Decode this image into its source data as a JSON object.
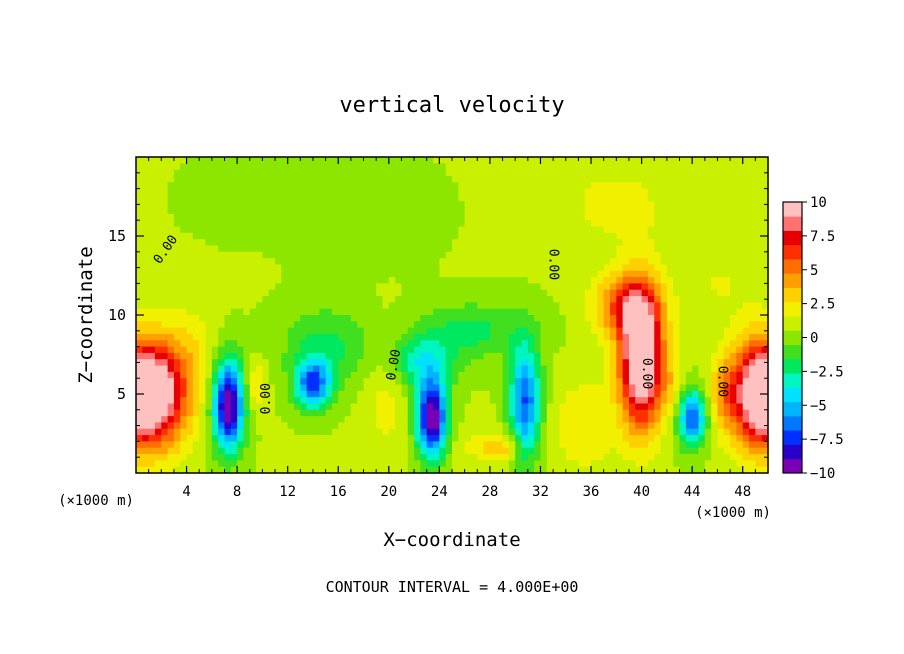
{
  "chart_data": {
    "type": "heatmap",
    "title": "vertical velocity",
    "xlabel": "X−coordinate",
    "ylabel": "Z−coordinate",
    "x_unit_left": "(×1000 m)",
    "x_unit_right": "(×1000 m)",
    "footer": "CONTOUR INTERVAL = 4.000E+00",
    "xlim": [
      0,
      50
    ],
    "ylim": [
      0,
      20
    ],
    "xticks": [
      4,
      8,
      12,
      16,
      20,
      24,
      28,
      32,
      36,
      40,
      44,
      48
    ],
    "xtick_labels": [
      "4",
      "8",
      "12",
      "16",
      "20",
      "24",
      "28",
      "32",
      "36",
      "40",
      "44",
      "48"
    ],
    "yticks": [
      5,
      10,
      15
    ],
    "ytick_labels": [
      "5",
      "10",
      "15"
    ],
    "colorbar": {
      "min": -10,
      "max": 10,
      "ticks": [
        10,
        7.5,
        5,
        2.5,
        0,
        -2.5,
        -5,
        -7.5,
        -10
      ],
      "tick_labels": [
        "10",
        "7.5",
        "5",
        "2.5",
        "0",
        "−2.5",
        "−5",
        "−7.5",
        "−10"
      ],
      "colors": [
        "#7a00b4",
        "#2a00c8",
        "#0030ff",
        "#0078ff",
        "#00b4ff",
        "#00e0ff",
        "#00f5c0",
        "#00e860",
        "#40e020",
        "#8ce600",
        "#c8f000",
        "#f0f000",
        "#ffd000",
        "#ffa000",
        "#ff6e00",
        "#ff3000",
        "#e80000",
        "#ff7070",
        "#ffc0c0"
      ]
    },
    "contour_labels": [
      {
        "text": "0.00",
        "x": 2.6,
        "z": 14.0,
        "angle": -55
      },
      {
        "text": "0.00",
        "x": 32.7,
        "z": 13.2,
        "angle": 90
      },
      {
        "text": "0.00",
        "x": 20.7,
        "z": 6.8,
        "angle": -80
      },
      {
        "text": "0.00",
        "x": 10.6,
        "z": 4.7,
        "angle": -90
      },
      {
        "text": "0.00",
        "x": 40.1,
        "z": 6.3,
        "angle": 90
      },
      {
        "text": "0.00",
        "x": 46.1,
        "z": 5.8,
        "angle": 90
      }
    ],
    "features": [
      {
        "x": 0.8,
        "z": 5.0,
        "sx": 3.0,
        "sz": 3.3,
        "a": 13
      },
      {
        "x": 49.8,
        "z": 5.0,
        "sx": 2.6,
        "sz": 3.3,
        "a": 13
      },
      {
        "x": 40.0,
        "z": 7.2,
        "sx": 1.7,
        "sz": 4.2,
        "a": 12
      },
      {
        "x": 38.6,
        "z": 10.6,
        "sx": 2.4,
        "sz": 2.0,
        "a": 5
      },
      {
        "x": 7.3,
        "z": 4.3,
        "sx": 1.2,
        "sz": 2.8,
        "a": -11
      },
      {
        "x": 23.4,
        "z": 3.5,
        "sx": 1.2,
        "sz": 2.5,
        "a": -11
      },
      {
        "x": 14.0,
        "z": 5.6,
        "sx": 1.4,
        "sz": 1.5,
        "a": -7.5
      },
      {
        "x": 30.8,
        "z": 4.5,
        "sx": 1.2,
        "sz": 3.5,
        "a": -7.5
      },
      {
        "x": 44.0,
        "z": 3.5,
        "sx": 1.1,
        "sz": 1.8,
        "a": -7.5
      },
      {
        "x": 22.5,
        "z": 7.0,
        "sx": 2.6,
        "sz": 1.6,
        "a": -3.5
      },
      {
        "x": 15.0,
        "z": 8.0,
        "sx": 3.5,
        "sz": 2.5,
        "a": -2.5
      },
      {
        "x": 26.5,
        "z": 9.0,
        "sx": 4.5,
        "sz": 1.8,
        "a": -2.5
      },
      {
        "x": 29.0,
        "z": 1.5,
        "sx": 1.5,
        "sz": 0.8,
        "a": 2.5
      },
      {
        "x": 19.8,
        "z": 5.0,
        "sx": 1.6,
        "sz": 4.0,
        "a": 1.5
      },
      {
        "x": 9.5,
        "z": 5.5,
        "sx": 0.8,
        "sz": 1.5,
        "a": 2.5
      },
      {
        "x": 4.5,
        "z": 8.0,
        "sx": 2.0,
        "sz": 3.0,
        "a": 1.2
      },
      {
        "x": 35.5,
        "z": 3.0,
        "sx": 2.5,
        "sz": 3.0,
        "a": 2
      },
      {
        "x": 27.0,
        "z": 1.8,
        "sx": 2.2,
        "sz": 1.2,
        "a": 1.2
      },
      {
        "x": 46.5,
        "z": 5.0,
        "sx": 1.2,
        "sz": 2.2,
        "a": 2.2
      },
      {
        "x": 42.5,
        "z": 5.5,
        "sx": 1.0,
        "sz": 1.8,
        "a": 1.5
      },
      {
        "x": 38.0,
        "z": 17.0,
        "sx": 5.0,
        "sz": 3.0,
        "a": 1.3
      },
      {
        "x": 46.0,
        "z": 12.0,
        "sx": 3.5,
        "sz": 2.5,
        "a": 1.0
      },
      {
        "x": 18.0,
        "z": 16.5,
        "sx": 5.0,
        "sz": 3.0,
        "a": -0.9
      },
      {
        "x": 8.0,
        "z": 17.5,
        "sx": 4.0,
        "sz": 2.5,
        "a": -0.5
      }
    ]
  }
}
